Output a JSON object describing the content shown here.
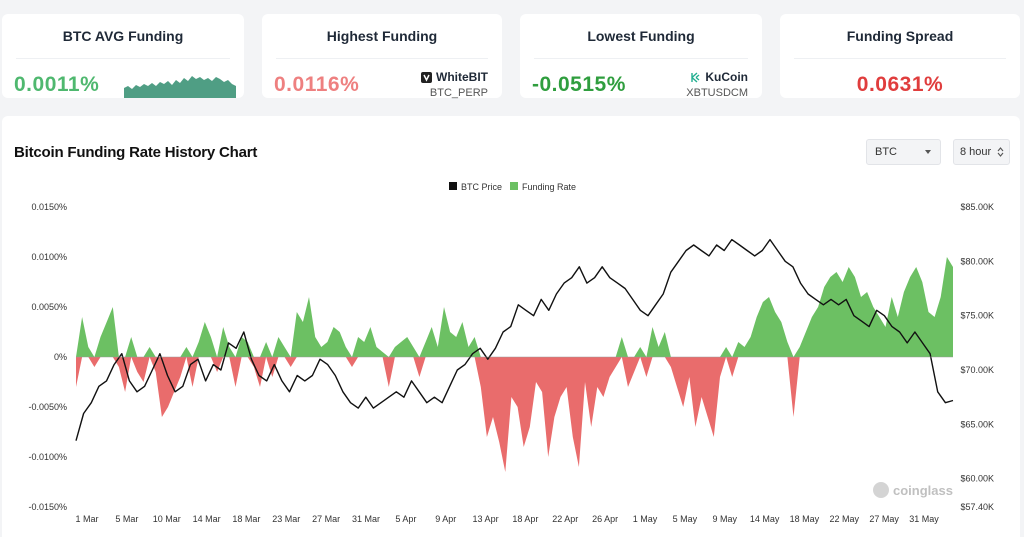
{
  "cards": [
    {
      "title": "BTC AVG Funding",
      "value": "0.0011%",
      "color": "#4fb86f"
    },
    {
      "title": "Highest Funding",
      "value": "0.0116%",
      "color": "#ee8080",
      "exchange": "WhiteBIT",
      "pair": "BTC_PERP"
    },
    {
      "title": "Lowest Funding",
      "value": "-0.0515%",
      "color": "#2f9e3e",
      "exchange": "KuCoin",
      "pair": "XBTUSDCM"
    },
    {
      "title": "Funding Spread",
      "value": "0.0631%",
      "color": "#e03d3d"
    }
  ],
  "icons": {
    "whitebit": "whitebit-logo-icon",
    "kucoin": "kucoin-logo-icon",
    "select_caret": "caret-down-icon",
    "stepper": "up-down-stepper-icon"
  },
  "panel": {
    "title": "Bitcoin Funding Rate History Chart",
    "coin_select": "BTC",
    "interval_select": "8 hour",
    "watermark": "coinglass"
  },
  "chart_data": {
    "type": "bar+line",
    "legend": [
      "BTC Price",
      "Funding Rate"
    ],
    "legend_position": "top-center",
    "colors": {
      "positive": "#6cc063",
      "negative": "#e96c6c",
      "price": "#111111"
    },
    "y_left": {
      "ticks": [
        "0.0150%",
        "0.0100%",
        "0.0050%",
        "0%",
        "-0.0050%",
        "-0.0100%",
        "-0.0150%"
      ],
      "range": [
        -0.015,
        0.015
      ],
      "unit": "%"
    },
    "y_right": {
      "ticks": [
        "$85.00K",
        "$80.00K",
        "$75.00K",
        "$70.00K",
        "$65.00K",
        "$60.00K",
        "$57.40K"
      ],
      "range": [
        57.4,
        85
      ],
      "unit": "$K"
    },
    "x_ticks": [
      "1 Mar",
      "5 Mar",
      "10 Mar",
      "14 Mar",
      "18 Mar",
      "23 Mar",
      "27 Mar",
      "31 Mar",
      "5 Apr",
      "9 Apr",
      "13 Apr",
      "18 Apr",
      "22 Apr",
      "26 Apr",
      "1 May",
      "5 May",
      "9 May",
      "14 May",
      "18 May",
      "22 May",
      "27 May",
      "31 May"
    ],
    "funding_rate": [
      -0.003,
      0.004,
      0.001,
      -0.001,
      0.002,
      0.0035,
      0.005,
      -0.001,
      -0.0035,
      0.002,
      -0.0015,
      -0.0025,
      0.001,
      -0.0015,
      -0.006,
      -0.005,
      -0.0035,
      -0.002,
      0.001,
      -0.003,
      0.0015,
      0.0035,
      0.002,
      -0.0015,
      0.003,
      0.001,
      -0.003,
      0.002,
      0.0015,
      -0.001,
      -0.003,
      0.0015,
      -0.002,
      0.002,
      0.001,
      -0.001,
      0.0045,
      0.0035,
      0.006,
      0.002,
      0.001,
      0.0015,
      0.003,
      0.0025,
      0.001,
      -0.001,
      0.002,
      0.0015,
      0.003,
      0.001,
      0.0005,
      -0.003,
      0.001,
      0.0015,
      0.002,
      0.001,
      -0.002,
      0.0015,
      0.003,
      0.001,
      0.005,
      0.0025,
      0.002,
      0.0035,
      0.001,
      0.002,
      -0.003,
      -0.008,
      -0.006,
      -0.0085,
      -0.0115,
      -0.004,
      -0.005,
      -0.009,
      -0.007,
      -0.0025,
      -0.0035,
      -0.01,
      -0.006,
      -0.004,
      -0.003,
      -0.008,
      -0.011,
      -0.0025,
      -0.007,
      -0.003,
      -0.004,
      -0.002,
      -0.001,
      0.002,
      -0.003,
      -0.0015,
      0.001,
      -0.002,
      0.003,
      0.001,
      0.0025,
      -0.001,
      -0.003,
      -0.005,
      -0.002,
      -0.007,
      -0.004,
      -0.006,
      -0.008,
      -0.002,
      0.001,
      -0.002,
      0.0015,
      0.001,
      0.002,
      0.004,
      0.0055,
      0.006,
      0.0045,
      0.0035,
      0.0015,
      -0.006,
      0.001,
      0.0025,
      0.004,
      0.005,
      0.007,
      0.008,
      0.0085,
      0.0075,
      0.009,
      0.008,
      0.006,
      0.0065,
      0.005,
      0.004,
      0.003,
      0.006,
      0.004,
      0.0065,
      0.008,
      0.009,
      0.0075,
      0.0045,
      0.004,
      0.006,
      0.01,
      0.009
    ],
    "btc_price_k": [
      63.5,
      66.0,
      67.0,
      68.5,
      69.0,
      70.5,
      71.5,
      69.0,
      68.0,
      68.5,
      70.0,
      71.5,
      69.5,
      68.0,
      68.5,
      70.5,
      71.0,
      69.0,
      70.5,
      70.0,
      72.5,
      72.0,
      73.5,
      71.0,
      69.5,
      69.0,
      70.5,
      69.0,
      68.0,
      69.5,
      69.0,
      69.5,
      71.0,
      70.5,
      69.5,
      68.0,
      67.0,
      66.5,
      67.5,
      66.5,
      67.0,
      67.5,
      68.0,
      67.5,
      69.0,
      68.0,
      67.0,
      67.5,
      67.0,
      68.5,
      70.0,
      70.5,
      71.5,
      72.0,
      71.0,
      72.0,
      73.5,
      74.0,
      76.0,
      75.5,
      75.0,
      76.5,
      75.5,
      77.0,
      78.0,
      78.5,
      79.5,
      78.0,
      78.5,
      79.5,
      78.5,
      78.0,
      77.5,
      76.5,
      75.5,
      75.0,
      76.0,
      77.0,
      79.0,
      80.0,
      81.0,
      81.5,
      81.0,
      80.5,
      81.5,
      81.0,
      82.0,
      81.5,
      81.0,
      80.5,
      81.0,
      82.0,
      81.0,
      80.0,
      79.5,
      78.0,
      77.0,
      76.5,
      76.0,
      76.5,
      76.0,
      76.5,
      75.0,
      74.5,
      74.0,
      75.5,
      75.0,
      74.0,
      73.5,
      72.5,
      73.5,
      72.5,
      71.5,
      68.0,
      67.0,
      67.2
    ]
  }
}
